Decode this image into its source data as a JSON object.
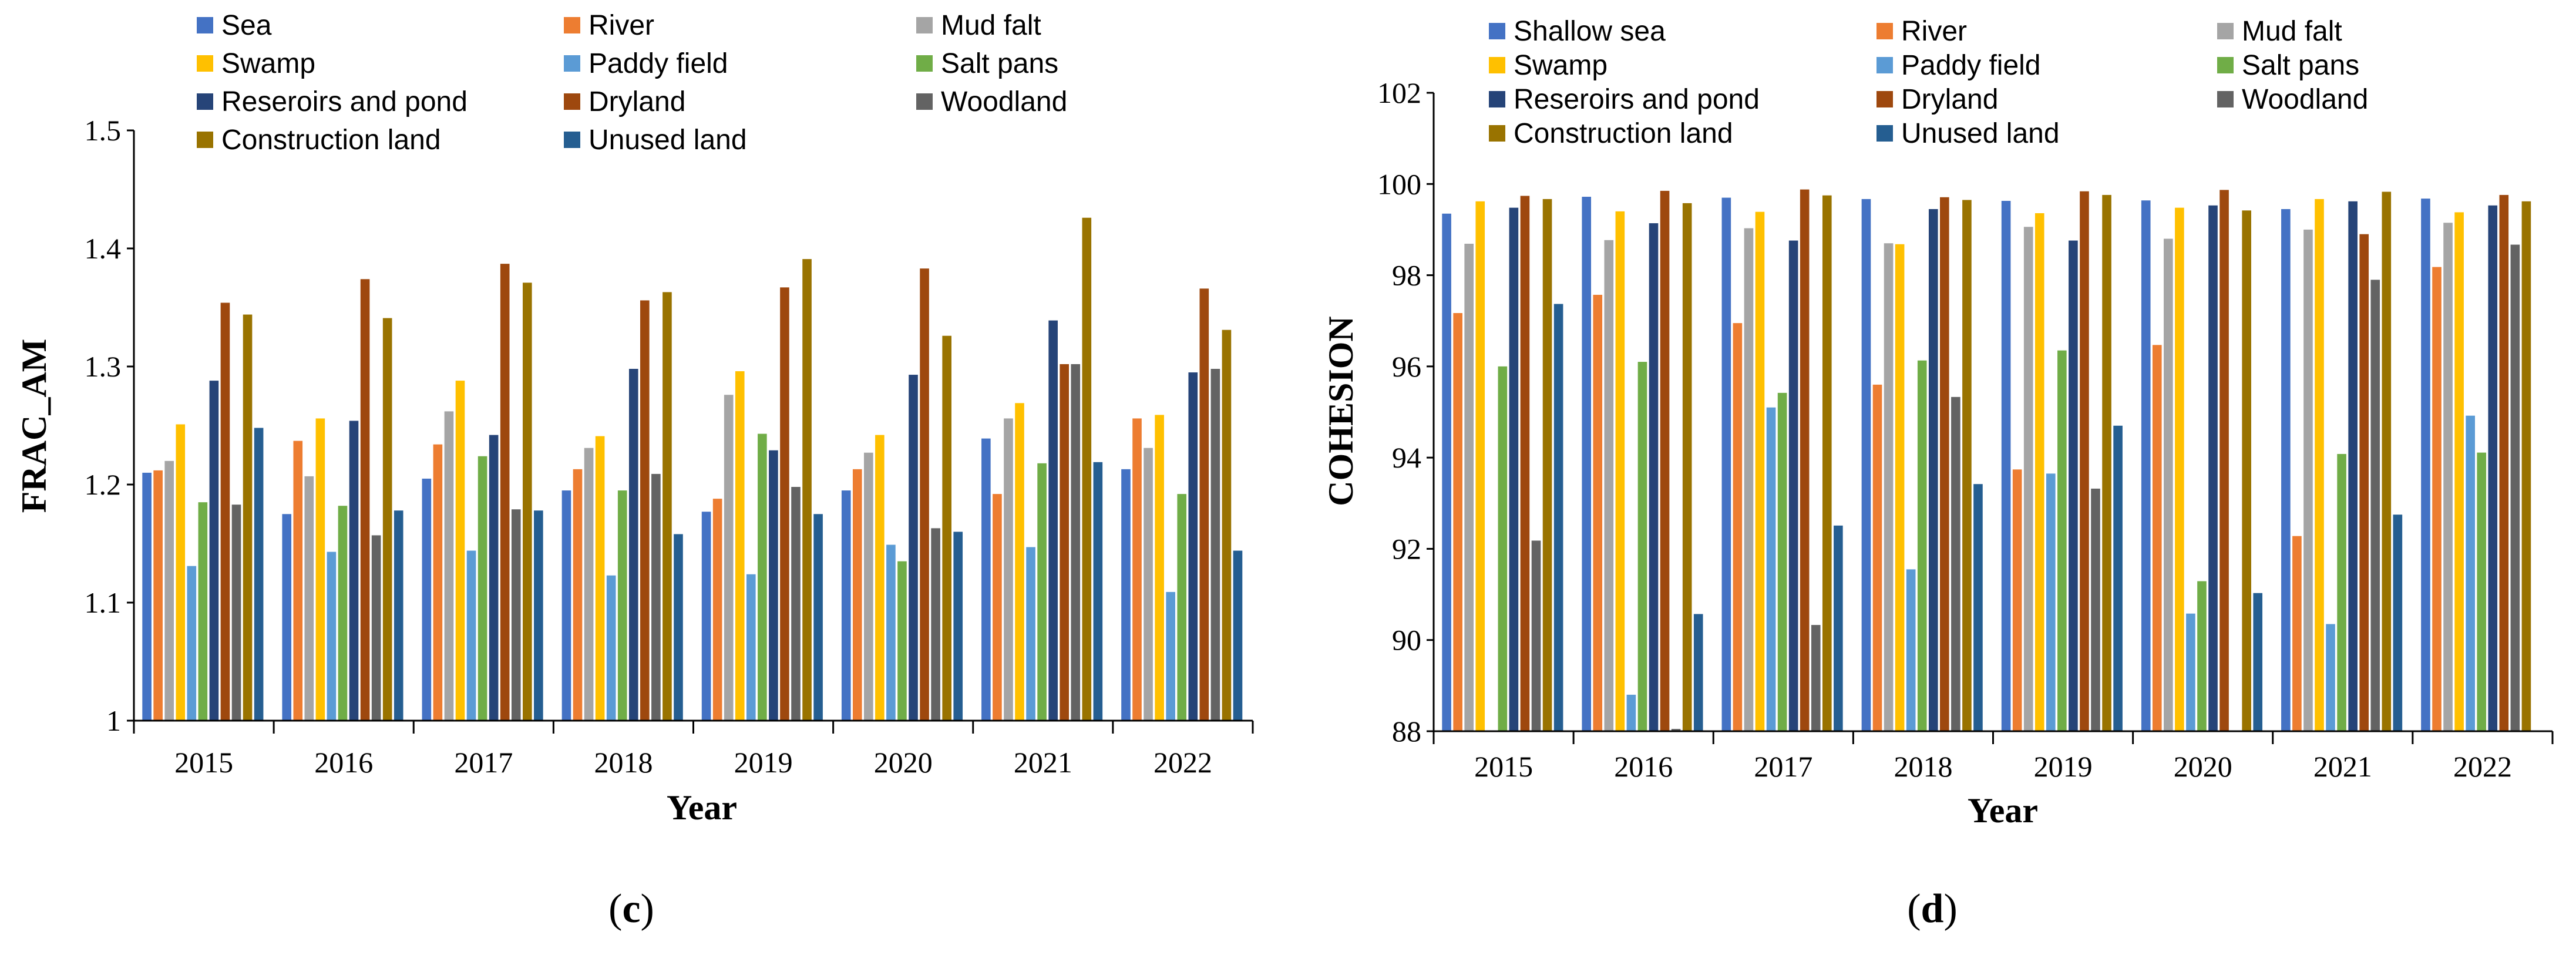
{
  "chart_data": [
    {
      "type": "bar",
      "panel_label": "c",
      "title": "",
      "xlabel": "Year",
      "ylabel": "FRAC_AM",
      "ylim": [
        1,
        1.5
      ],
      "yticks": [
        "1",
        "1.1",
        "1.2",
        "1.3",
        "1.4",
        "1.5"
      ],
      "grid": false,
      "legend_position": "top",
      "categories": [
        "2015",
        "2016",
        "2017",
        "2018",
        "2019",
        "2020",
        "2021",
        "2022"
      ],
      "series": [
        {
          "name": "Sea",
          "color": "#4472C4",
          "values": [
            1.21,
            1.175,
            1.205,
            1.195,
            1.177,
            1.195,
            1.239,
            1.213
          ]
        },
        {
          "name": "River",
          "color": "#ED7D31",
          "values": [
            1.212,
            1.237,
            1.234,
            1.213,
            1.188,
            1.213,
            1.192,
            1.256
          ]
        },
        {
          "name": "Mud falt",
          "color": "#A5A5A5",
          "values": [
            1.22,
            1.207,
            1.262,
            1.231,
            1.276,
            1.227,
            1.256,
            1.231
          ]
        },
        {
          "name": "Swamp",
          "color": "#FFC000",
          "values": [
            1.251,
            1.256,
            1.288,
            1.241,
            1.296,
            1.242,
            1.269,
            1.259
          ]
        },
        {
          "name": "Paddy field",
          "color": "#5B9BD5",
          "values": [
            1.131,
            1.143,
            1.144,
            1.123,
            1.124,
            1.149,
            1.147,
            1.109
          ]
        },
        {
          "name": "Salt pans",
          "color": "#70AD47",
          "values": [
            1.185,
            1.182,
            1.224,
            1.195,
            1.243,
            1.135,
            1.218,
            1.192
          ]
        },
        {
          "name": "Reseroirs and pond",
          "color": "#264478",
          "values": [
            1.288,
            1.254,
            1.242,
            1.298,
            1.229,
            1.293,
            1.339,
            1.295
          ]
        },
        {
          "name": "Dryland",
          "color": "#9E480E",
          "values": [
            1.354,
            1.374,
            1.387,
            1.356,
            1.367,
            1.383,
            1.302,
            1.366
          ]
        },
        {
          "name": "Woodland",
          "color": "#636363",
          "values": [
            1.183,
            1.157,
            1.179,
            1.209,
            1.198,
            1.163,
            1.302,
            1.298
          ]
        },
        {
          "name": "Construction land",
          "color": "#997300",
          "values": [
            1.344,
            1.341,
            1.371,
            1.363,
            1.391,
            1.326,
            1.426,
            1.331
          ]
        },
        {
          "name": "Unused land",
          "color": "#255E91",
          "values": [
            1.248,
            1.178,
            1.178,
            1.158,
            1.175,
            1.16,
            1.219,
            1.144
          ]
        }
      ]
    },
    {
      "type": "bar",
      "panel_label": "d",
      "title": "",
      "xlabel": "Year",
      "ylabel": "COHESION",
      "ylim": [
        88,
        102
      ],
      "yticks": [
        "88",
        "90",
        "92",
        "94",
        "96",
        "98",
        "100",
        "102"
      ],
      "grid": false,
      "legend_position": "top",
      "categories": [
        "2015",
        "2016",
        "2017",
        "2018",
        "2019",
        "2020",
        "2021",
        "2022"
      ],
      "series": [
        {
          "name": "Shallow sea",
          "color": "#4472C4",
          "values": [
            99.35,
            99.72,
            99.7,
            99.67,
            99.63,
            99.64,
            99.45,
            99.68
          ]
        },
        {
          "name": "River",
          "color": "#ED7D31",
          "values": [
            97.17,
            97.57,
            96.95,
            95.6,
            93.74,
            96.47,
            92.28,
            98.18
          ]
        },
        {
          "name": "Mud falt",
          "color": "#A5A5A5",
          "values": [
            98.69,
            98.77,
            99.03,
            98.7,
            99.06,
            98.8,
            99.0,
            99.15
          ]
        },
        {
          "name": "Swamp",
          "color": "#FFC000",
          "values": [
            99.62,
            99.4,
            99.39,
            98.68,
            99.36,
            99.48,
            99.67,
            99.38
          ]
        },
        {
          "name": "Paddy field",
          "color": "#5B9BD5",
          "values": [
            88.0,
            88.8,
            95.1,
            91.55,
            93.65,
            90.58,
            90.35,
            94.92
          ]
        },
        {
          "name": "Salt pans",
          "color": "#70AD47",
          "values": [
            96.0,
            96.1,
            95.42,
            96.13,
            96.35,
            91.29,
            94.08,
            94.11
          ]
        },
        {
          "name": "Reseroirs and pond",
          "color": "#264478",
          "values": [
            99.48,
            99.14,
            98.76,
            99.45,
            98.76,
            99.53,
            99.62,
            99.53
          ]
        },
        {
          "name": "Dryland",
          "color": "#9E480E",
          "values": [
            99.74,
            99.85,
            99.88,
            99.71,
            99.84,
            99.87,
            98.9,
            99.76
          ]
        },
        {
          "name": "Woodland",
          "color": "#636363",
          "values": [
            92.18,
            88.05,
            90.33,
            95.33,
            93.32,
            88.0,
            97.9,
            98.67
          ]
        },
        {
          "name": "Construction land",
          "color": "#997300",
          "values": [
            99.67,
            99.58,
            99.75,
            99.65,
            99.76,
            99.42,
            99.83,
            99.62
          ]
        },
        {
          "name": "Unused land",
          "color": "#255E91",
          "values": [
            97.37,
            90.57,
            92.51,
            93.42,
            94.7,
            91.03,
            92.75,
            88.0
          ]
        }
      ]
    }
  ]
}
